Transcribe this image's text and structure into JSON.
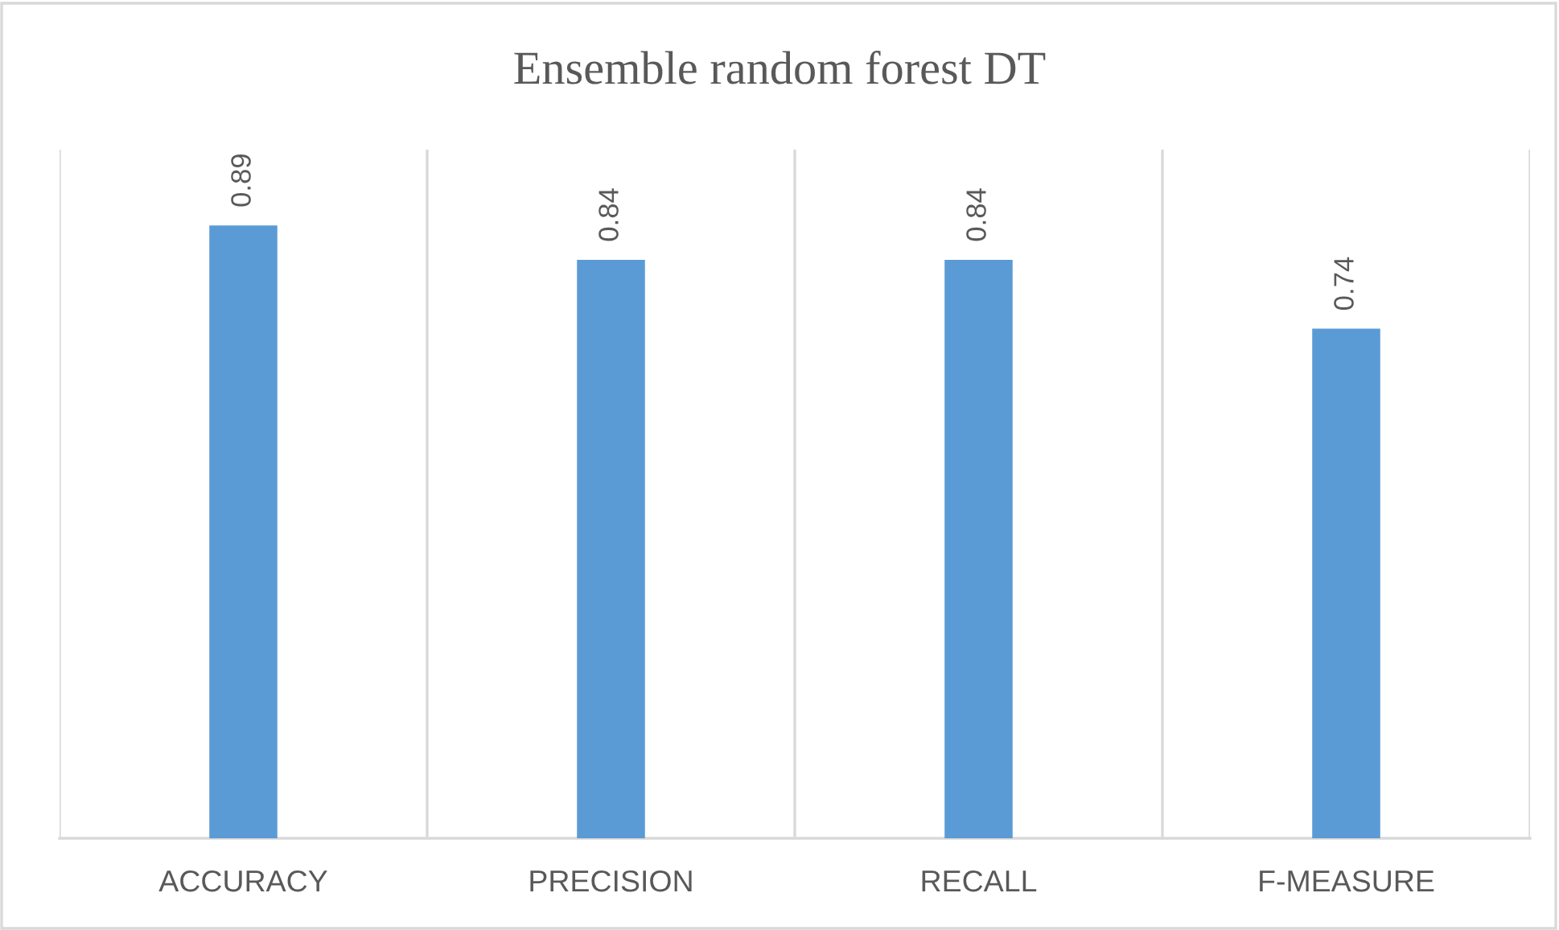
{
  "chart_data": {
    "type": "bar",
    "title": "Ensemble random forest DT",
    "categories": [
      "ACCURACY",
      "PRECISION",
      "RECALL",
      "F-MEASURE"
    ],
    "values": [
      0.89,
      0.84,
      0.84,
      0.74
    ],
    "color": "#5b9bd5",
    "ylim": [
      0,
      1
    ],
    "tick_labels": "x",
    "grid": "x",
    "data_labels": true
  }
}
